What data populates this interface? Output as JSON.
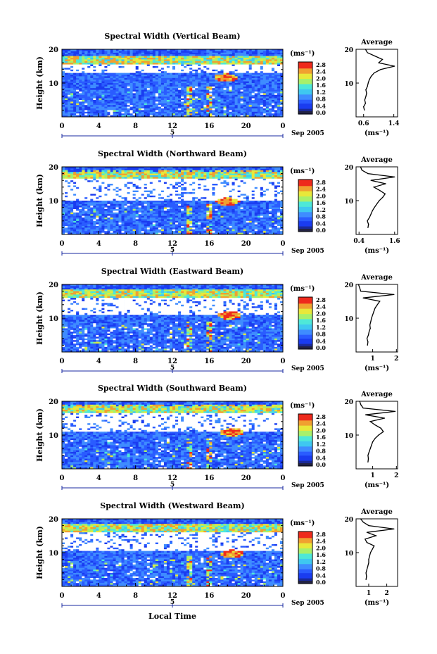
{
  "figure": {
    "xlabel": "Local Time",
    "x_ticks": [
      "0",
      "4",
      "8",
      "12",
      "16",
      "20",
      "0"
    ],
    "y_ticks": [
      "20",
      "10"
    ],
    "ylabel": "Height (km)",
    "date_mark": "5",
    "date_label": "Sep 2005",
    "colorbar_unit": "(ms⁻¹)",
    "colorbar_ticks": [
      "2.8",
      "2.4",
      "2.0",
      "1.6",
      "1.2",
      "0.8",
      "0.4",
      "0.0"
    ],
    "average_title": "Average",
    "average_xlabel": "(ms⁻¹)",
    "colors": {
      "background": "#1a3cf0",
      "low": "#2f6cff",
      "mid": "#3fd0e8",
      "high": "#e8e83a",
      "peak": "#ee2a1c",
      "gap": "#ffffff"
    }
  },
  "chart_data": [
    {
      "type": "heatmap",
      "title": "Spectral Width (Vertical Beam)",
      "average_xticks": [
        "0.6",
        "1.4"
      ],
      "average_xlim": [
        0.4,
        1.5
      ],
      "average_profile": [
        [
          2,
          0.62
        ],
        [
          3,
          0.6
        ],
        [
          4,
          0.65
        ],
        [
          5,
          0.63
        ],
        [
          6,
          0.66
        ],
        [
          7,
          0.68
        ],
        [
          8,
          0.66
        ],
        [
          9,
          0.7
        ],
        [
          10,
          0.72
        ],
        [
          11,
          0.75
        ],
        [
          12,
          0.8
        ],
        [
          13,
          0.88
        ],
        [
          14,
          1.05
        ],
        [
          15,
          1.42
        ],
        [
          16,
          1.0
        ],
        [
          17,
          1.1
        ],
        [
          18,
          0.9
        ],
        [
          19,
          0.7
        ],
        [
          20,
          0.65
        ]
      ]
    },
    {
      "type": "heatmap",
      "title": "Spectral Width (Northward Beam)",
      "average_xticks": [
        "0.4",
        "1.6"
      ],
      "average_xlim": [
        0.3,
        1.7
      ],
      "average_profile": [
        [
          2,
          0.7
        ],
        [
          3,
          0.72
        ],
        [
          4,
          0.68
        ],
        [
          5,
          0.75
        ],
        [
          6,
          0.8
        ],
        [
          7,
          0.85
        ],
        [
          8,
          0.92
        ],
        [
          9,
          1.0
        ],
        [
          10,
          1.08
        ],
        [
          11,
          1.2
        ],
        [
          12,
          1.28
        ],
        [
          13,
          1.1
        ],
        [
          14,
          0.9
        ],
        [
          15,
          1.3
        ],
        [
          16,
          0.8
        ],
        [
          17,
          1.6
        ],
        [
          18,
          0.7
        ],
        [
          19,
          0.5
        ],
        [
          20,
          0.45
        ]
      ]
    },
    {
      "type": "heatmap",
      "title": "Spectral Width (Eastward Beam)",
      "average_xticks": [
        "1",
        "2"
      ],
      "average_xlim": [
        0.3,
        2.05
      ],
      "average_profile": [
        [
          2,
          0.78
        ],
        [
          3,
          0.8
        ],
        [
          4,
          0.76
        ],
        [
          5,
          0.82
        ],
        [
          6,
          0.85
        ],
        [
          7,
          0.9
        ],
        [
          8,
          0.88
        ],
        [
          9,
          0.92
        ],
        [
          10,
          0.95
        ],
        [
          11,
          1.0
        ],
        [
          12,
          1.05
        ],
        [
          13,
          1.1
        ],
        [
          14,
          1.2
        ],
        [
          15,
          1.3
        ],
        [
          16,
          0.6
        ],
        [
          17,
          1.9
        ],
        [
          18,
          0.5
        ],
        [
          19,
          0.45
        ],
        [
          20,
          0.4
        ]
      ]
    },
    {
      "type": "heatmap",
      "title": "Spectral Width (Southward Beam)",
      "average_xticks": [
        "1",
        "2"
      ],
      "average_xlim": [
        0.3,
        2.05
      ],
      "average_profile": [
        [
          2,
          0.8
        ],
        [
          3,
          0.82
        ],
        [
          4,
          0.8
        ],
        [
          5,
          0.85
        ],
        [
          6,
          0.9
        ],
        [
          7,
          0.95
        ],
        [
          8,
          1.0
        ],
        [
          9,
          1.1
        ],
        [
          10,
          1.25
        ],
        [
          11,
          1.45
        ],
        [
          12,
          1.35
        ],
        [
          13,
          1.1
        ],
        [
          14,
          0.9
        ],
        [
          15,
          1.5
        ],
        [
          16,
          0.7
        ],
        [
          17,
          1.95
        ],
        [
          18,
          0.6
        ],
        [
          19,
          0.5
        ],
        [
          20,
          0.45
        ]
      ]
    },
    {
      "type": "heatmap",
      "title": "Spectral Width (Westward Beam)",
      "average_xticks": [
        "1",
        "2"
      ],
      "average_xlim": [
        0.3,
        2.6
      ],
      "average_profile": [
        [
          2,
          0.85
        ],
        [
          3,
          0.88
        ],
        [
          4,
          0.85
        ],
        [
          5,
          0.9
        ],
        [
          6,
          0.95
        ],
        [
          7,
          1.0
        ],
        [
          8,
          1.0
        ],
        [
          9,
          1.05
        ],
        [
          10,
          1.1
        ],
        [
          11,
          1.2
        ],
        [
          12,
          1.3
        ],
        [
          13,
          0.9
        ],
        [
          14,
          0.8
        ],
        [
          15,
          1.4
        ],
        [
          16,
          0.9
        ],
        [
          17,
          2.4
        ],
        [
          18,
          1.0
        ],
        [
          19,
          0.7
        ],
        [
          20,
          0.55
        ]
      ]
    }
  ]
}
